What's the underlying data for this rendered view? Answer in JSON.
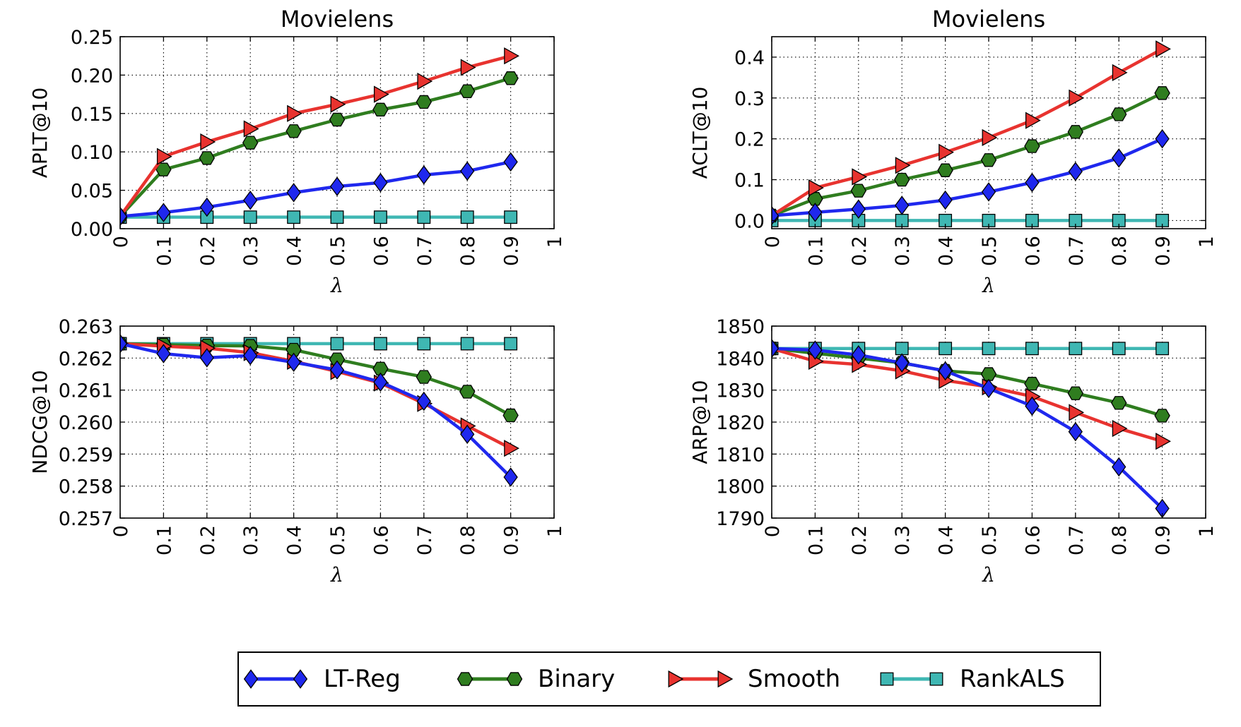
{
  "colors": {
    "LT-Reg": "#1f28ee",
    "Binary": "#2f7d1f",
    "Smooth": "#e8332f",
    "RankALS": "#3fb7b3"
  },
  "legend": {
    "placement": "bottom-center",
    "entries": [
      {
        "name": "LT-Reg",
        "marker": "diamond"
      },
      {
        "name": "Binary",
        "marker": "hexagon"
      },
      {
        "name": "Smooth",
        "marker": "triangle-right"
      },
      {
        "name": "RankALS",
        "marker": "square"
      }
    ]
  },
  "chart_data": [
    {
      "type": "line",
      "title": "Movielens",
      "xlabel": "λ",
      "ylabel": "APLT@10",
      "grid": true,
      "xlim": [
        0,
        1
      ],
      "ylim": [
        0,
        0.25
      ],
      "xticks": [
        "0",
        "0.1",
        "0.2",
        "0.3",
        "0.4",
        "0.5",
        "0.6",
        "0.7",
        "0.8",
        "0.9",
        "1"
      ],
      "yticks": [
        "0.00",
        "0.05",
        "0.10",
        "0.15",
        "0.20",
        "0.25"
      ],
      "x": [
        0,
        0.1,
        0.2,
        0.3,
        0.4,
        0.5,
        0.6,
        0.7,
        0.8,
        0.9
      ],
      "series": [
        {
          "name": "LT-Reg",
          "values": [
            0.016,
            0.021,
            0.028,
            0.037,
            0.047,
            0.055,
            0.06,
            0.07,
            0.075,
            0.087
          ]
        },
        {
          "name": "Binary",
          "values": [
            0.016,
            0.077,
            0.092,
            0.112,
            0.127,
            0.142,
            0.155,
            0.165,
            0.179,
            0.196
          ]
        },
        {
          "name": "Smooth",
          "values": [
            0.016,
            0.094,
            0.113,
            0.13,
            0.15,
            0.162,
            0.175,
            0.192,
            0.21,
            0.225
          ]
        },
        {
          "name": "RankALS",
          "values": [
            0.015,
            0.015,
            0.015,
            0.015,
            0.015,
            0.015,
            0.015,
            0.015,
            0.015,
            0.015
          ]
        }
      ]
    },
    {
      "type": "line",
      "title": "Movielens",
      "xlabel": "λ",
      "ylabel": "ACLT@10",
      "grid": true,
      "xlim": [
        0,
        1
      ],
      "ylim": [
        -0.02,
        0.45
      ],
      "xticks": [
        "0",
        "0.1",
        "0.2",
        "0.3",
        "0.4",
        "0.5",
        "0.6",
        "0.7",
        "0.8",
        "0.9",
        "1"
      ],
      "yticks": [
        "0.0",
        "0.1",
        "0.2",
        "0.3",
        "0.4"
      ],
      "x": [
        0,
        0.1,
        0.2,
        0.3,
        0.4,
        0.5,
        0.6,
        0.7,
        0.8,
        0.9
      ],
      "series": [
        {
          "name": "LT-Reg",
          "values": [
            0.012,
            0.02,
            0.028,
            0.037,
            0.05,
            0.07,
            0.093,
            0.12,
            0.153,
            0.2
          ]
        },
        {
          "name": "Binary",
          "values": [
            0.012,
            0.053,
            0.073,
            0.1,
            0.123,
            0.148,
            0.182,
            0.217,
            0.26,
            0.312
          ]
        },
        {
          "name": "Smooth",
          "values": [
            0.012,
            0.08,
            0.107,
            0.135,
            0.167,
            0.203,
            0.245,
            0.3,
            0.362,
            0.42
          ]
        },
        {
          "name": "RankALS",
          "values": [
            0.0,
            0.0,
            0.0,
            0.0,
            0.0,
            0.0,
            0.0,
            0.0,
            0.0,
            0.0
          ]
        }
      ]
    },
    {
      "type": "line",
      "title": "",
      "xlabel": "λ",
      "ylabel": "NDCG@10",
      "grid": true,
      "xlim": [
        0,
        1
      ],
      "ylim": [
        0.257,
        0.263
      ],
      "xticks": [
        "0",
        "0.1",
        "0.2",
        "0.3",
        "0.4",
        "0.5",
        "0.6",
        "0.7",
        "0.8",
        "0.9",
        "1"
      ],
      "yticks": [
        "0.257",
        "0.258",
        "0.259",
        "0.260",
        "0.261",
        "0.262",
        "0.263"
      ],
      "x": [
        0,
        0.1,
        0.2,
        0.3,
        0.4,
        0.5,
        0.6,
        0.7,
        0.8,
        0.9
      ],
      "series": [
        {
          "name": "LT-Reg",
          "values": [
            0.26245,
            0.26214,
            0.26201,
            0.26208,
            0.26187,
            0.26163,
            0.26125,
            0.26065,
            0.25962,
            0.25828
          ]
        },
        {
          "name": "Binary",
          "values": [
            0.26245,
            0.26242,
            0.26239,
            0.26238,
            0.26226,
            0.26196,
            0.26167,
            0.26141,
            0.26095,
            0.26021
          ]
        },
        {
          "name": "Smooth",
          "values": [
            0.26245,
            0.26237,
            0.26231,
            0.26217,
            0.2619,
            0.26158,
            0.26122,
            0.26058,
            0.25988,
            0.25918
          ]
        },
        {
          "name": "RankALS",
          "values": [
            0.26245,
            0.26245,
            0.26245,
            0.26245,
            0.26245,
            0.26245,
            0.26245,
            0.26245,
            0.26245,
            0.26245
          ]
        }
      ]
    },
    {
      "type": "line",
      "title": "",
      "xlabel": "λ",
      "ylabel": "ARP@10",
      "grid": true,
      "xlim": [
        0,
        1
      ],
      "ylim": [
        1790,
        1850
      ],
      "xticks": [
        "0",
        "0.1",
        "0.2",
        "0.3",
        "0.4",
        "0.5",
        "0.6",
        "0.7",
        "0.8",
        "0.9",
        "1"
      ],
      "yticks": [
        "1790",
        "1800",
        "1810",
        "1820",
        "1830",
        "1840",
        "1850"
      ],
      "x": [
        0,
        0.1,
        0.2,
        0.3,
        0.4,
        0.5,
        0.6,
        0.7,
        0.8,
        0.9
      ],
      "series": [
        {
          "name": "LT-Reg",
          "values": [
            1843,
            1842.5,
            1841,
            1838.5,
            1836,
            1830.5,
            1825,
            1817,
            1806,
            1793
          ]
        },
        {
          "name": "Binary",
          "values": [
            1843,
            1841.5,
            1840,
            1838.5,
            1836,
            1835,
            1832,
            1829,
            1826,
            1822
          ]
        },
        {
          "name": "Smooth",
          "values": [
            1843,
            1839,
            1838,
            1836,
            1833,
            1831,
            1828,
            1823,
            1818,
            1814
          ]
        },
        {
          "name": "RankALS",
          "values": [
            1843,
            1843,
            1843,
            1843,
            1843,
            1843,
            1843,
            1843,
            1843,
            1843
          ]
        }
      ]
    }
  ]
}
